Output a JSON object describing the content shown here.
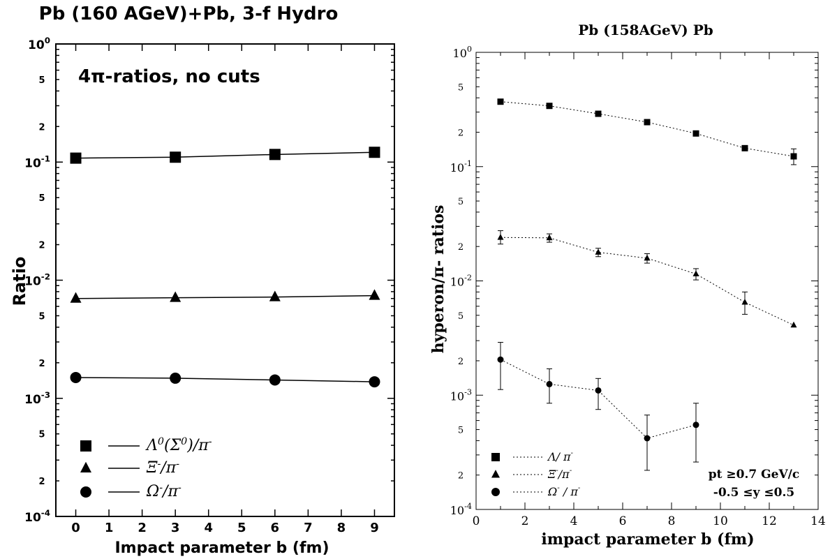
{
  "chart_data": [
    {
      "type": "line",
      "title": "Pb (160 AGeV)+Pb, 3-f Hydro",
      "annotation": "4π-ratios, no cuts",
      "xlabel": "Impact parameter b (fm)",
      "ylabel": "Ratio",
      "xlim": [
        -0.6,
        9.6
      ],
      "ylim": [
        0.0001,
        1
      ],
      "yscale": "log",
      "grid": false,
      "legend_position": "bottom-left",
      "xticks": [
        "0",
        "1",
        "2",
        "3",
        "4",
        "5",
        "6",
        "7",
        "8",
        "9"
      ],
      "yticks_major": [
        "10^0",
        "10^-1",
        "10^-2",
        "10^-3",
        "10^-4"
      ],
      "minor_labels": [
        "5",
        "2"
      ],
      "x": [
        0,
        3,
        6,
        9
      ],
      "series": [
        {
          "name": "Λ0(Σ0)/π-",
          "marker": "square",
          "values": [
            0.108,
            0.11,
            0.116,
            0.121
          ]
        },
        {
          "name": "Ξ-/π-",
          "marker": "triangle",
          "values": [
            0.007,
            0.0071,
            0.0072,
            0.0074
          ]
        },
        {
          "name": "Ω-/π-",
          "marker": "circle",
          "values": [
            0.0015,
            0.00148,
            0.00143,
            0.00138
          ]
        }
      ]
    },
    {
      "type": "scatter",
      "title": "Pb (158AGeV) Pb",
      "xlabel": "impact parameter b (fm)",
      "ylabel": "hyperon/π- ratios",
      "xlim": [
        0,
        14
      ],
      "ylim": [
        0.0001,
        1
      ],
      "yscale": "log",
      "grid": false,
      "legend_position": "bottom-left",
      "annotation_lines": [
        "pt ≥0.7 GeV/c",
        "-0.5 ≤y ≤0.5"
      ],
      "xticks": [
        "0",
        "2",
        "4",
        "6",
        "8",
        "10",
        "12",
        "14"
      ],
      "yticks_major": [
        "10^0",
        "10^-1",
        "10^-2",
        "10^-3",
        "10^-4"
      ],
      "minor_labels": [
        "5",
        "2"
      ],
      "series": [
        {
          "name": "Λ/ π-",
          "marker": "square",
          "x": [
            1,
            3,
            5,
            7,
            9,
            11,
            13
          ],
          "values": [
            0.37,
            0.34,
            0.29,
            0.245,
            0.195,
            0.145,
            0.123
          ],
          "err_low": [
            null,
            null,
            null,
            null,
            null,
            null,
            0.104
          ],
          "err_high": [
            null,
            null,
            null,
            null,
            null,
            null,
            0.143
          ]
        },
        {
          "name": "Ξ-/π-",
          "marker": "triangle",
          "x": [
            1,
            3,
            5,
            7,
            9,
            11,
            13
          ],
          "values": [
            0.024,
            0.0238,
            0.0178,
            0.0158,
            0.0115,
            0.0065,
            0.0041
          ],
          "err_low": [
            0.021,
            0.0218,
            0.0163,
            0.0143,
            0.0102,
            0.0051,
            null
          ],
          "err_high": [
            0.0275,
            0.0258,
            0.0193,
            0.0173,
            0.0128,
            0.008,
            null
          ]
        },
        {
          "name": "Ω- / π-",
          "marker": "circle",
          "x": [
            1,
            3,
            5,
            7,
            9
          ],
          "values": [
            0.00205,
            0.00125,
            0.0011,
            0.00042,
            0.00055
          ],
          "err_low": [
            0.00112,
            0.00085,
            0.00075,
            0.00022,
            0.00026
          ],
          "err_high": [
            0.0029,
            0.0017,
            0.0014,
            0.00067,
            0.00085
          ]
        }
      ]
    }
  ]
}
